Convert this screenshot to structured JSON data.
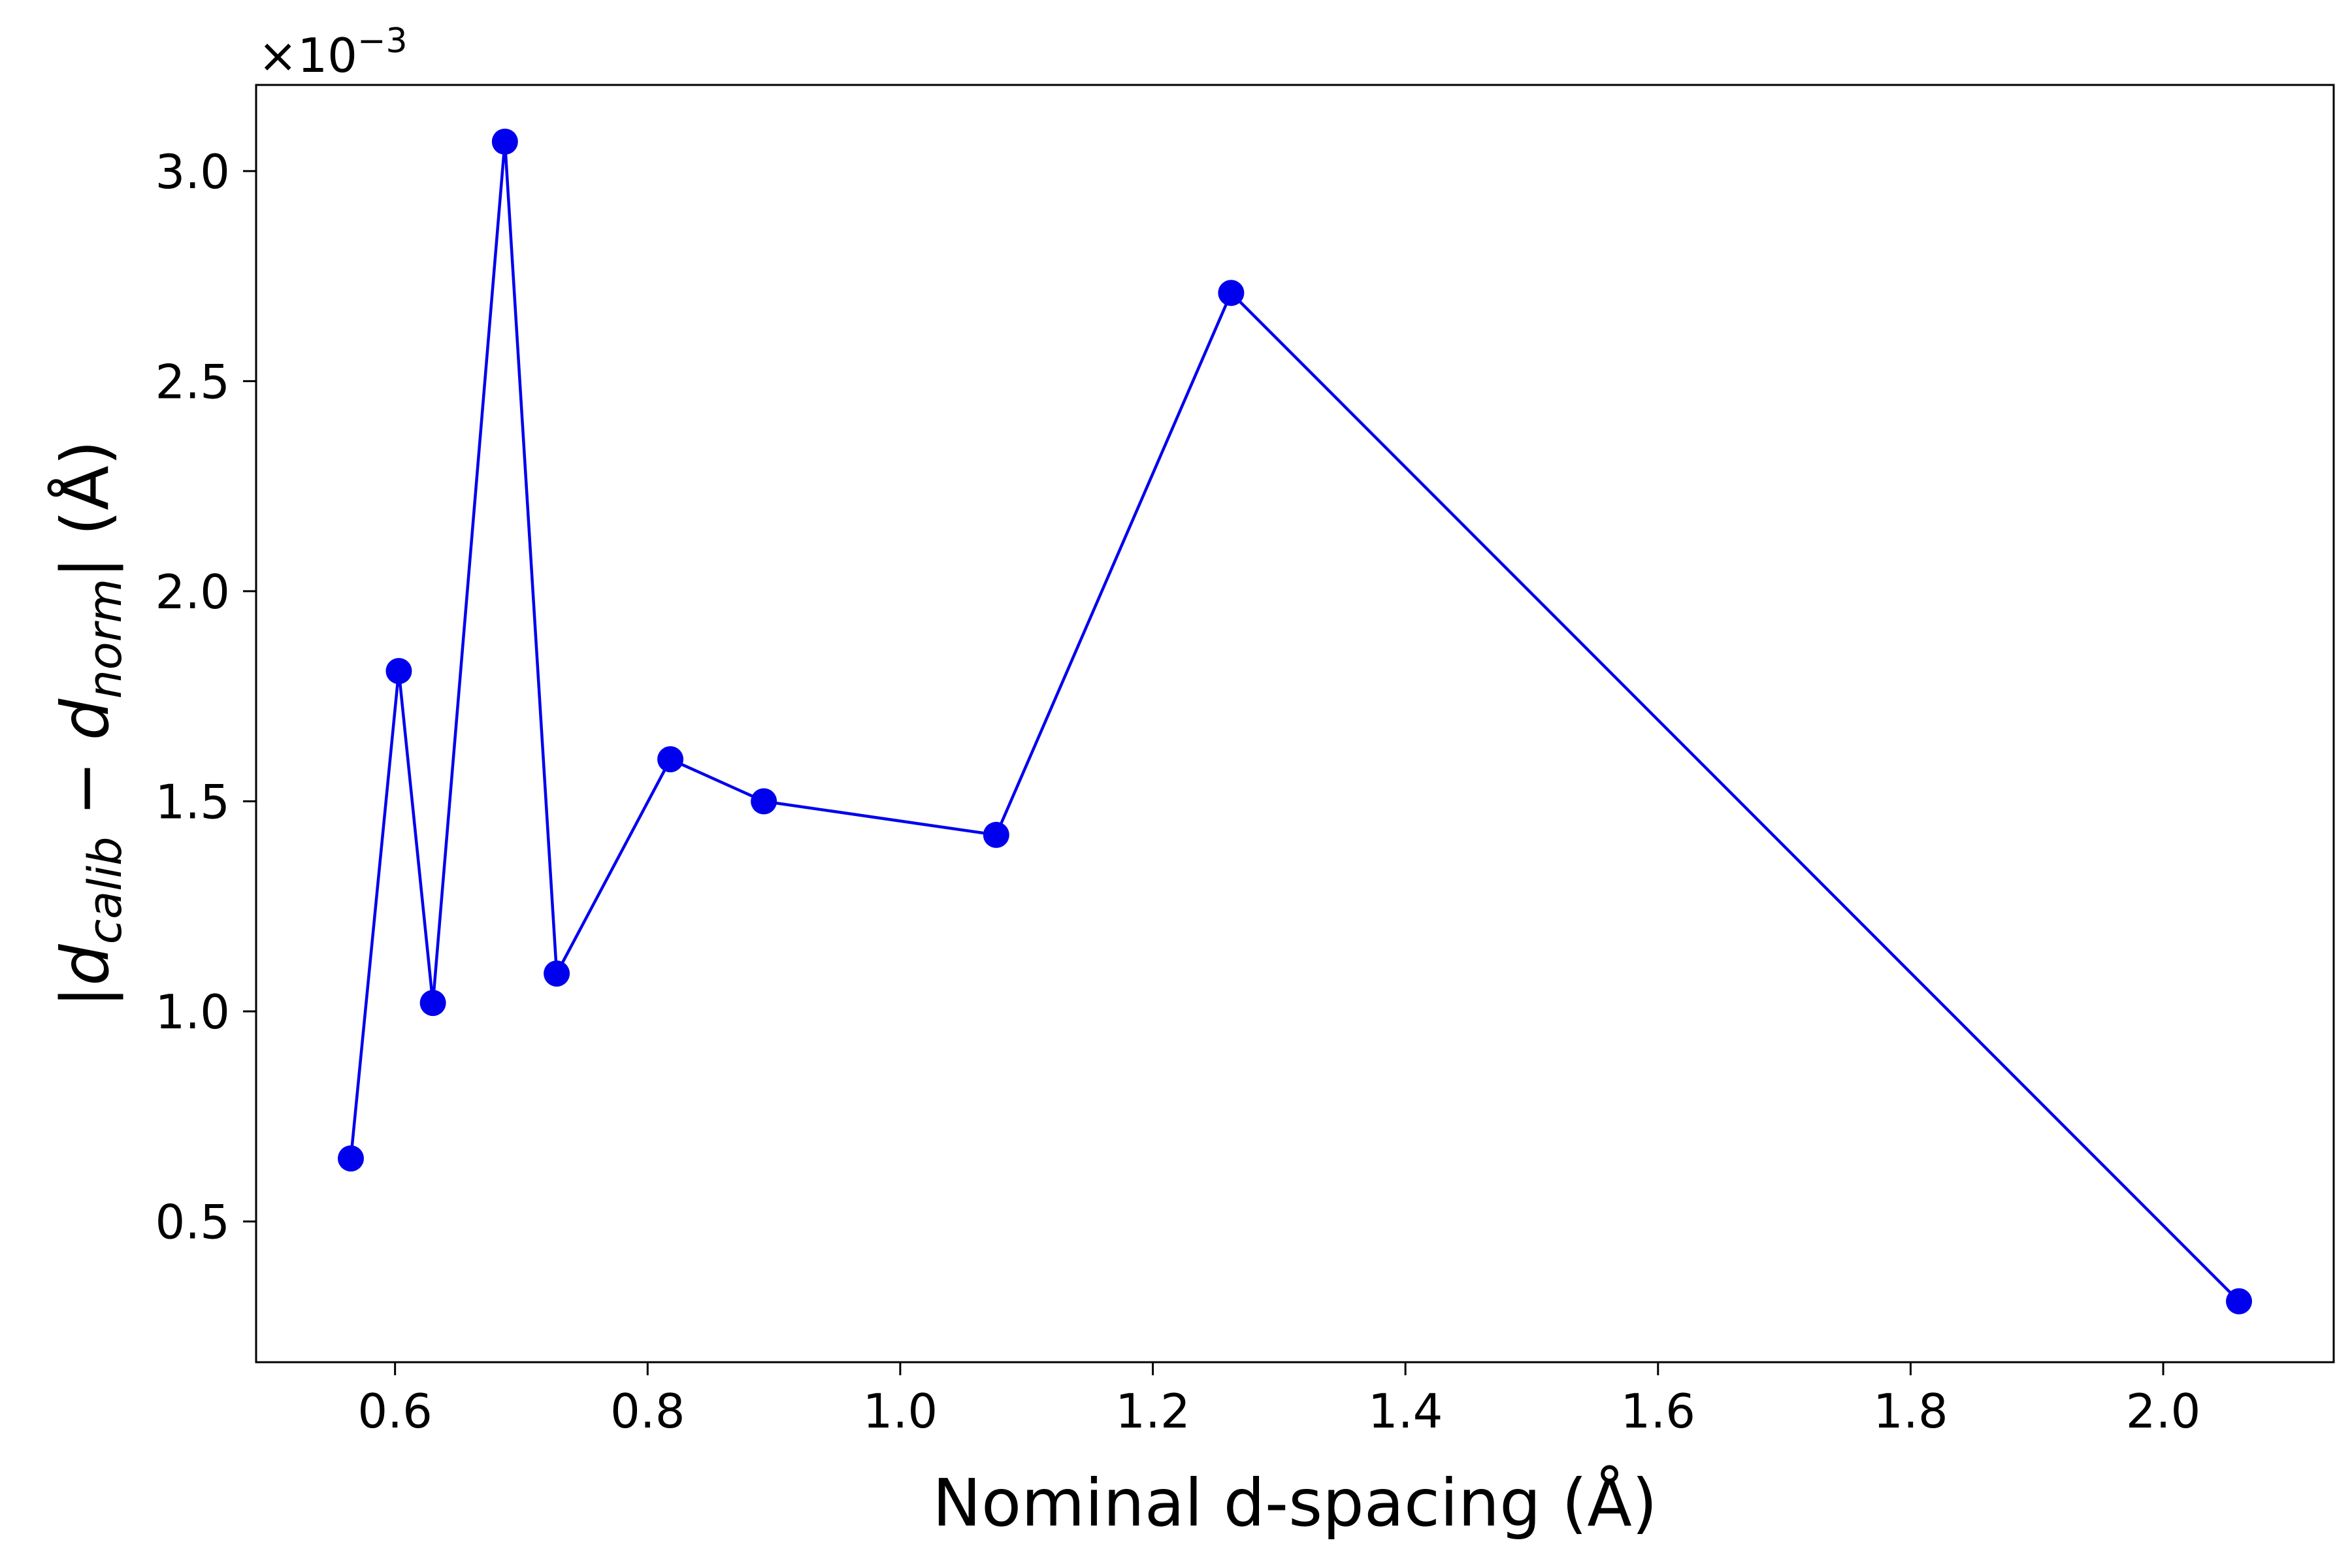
{
  "chart_data": {
    "type": "line",
    "xlabel": "Nominal d-spacing (Å)",
    "ylabel": {
      "open": "|",
      "d1": "d",
      "sub1": "calib",
      "minus": " − ",
      "d2": "d",
      "sub2": "norm",
      "close": "| (Å)"
    },
    "y_offset_label": {
      "base": "×10",
      "exponent": "−3"
    },
    "xlim": [
      0.49,
      2.135
    ],
    "ylim": [
      0.165,
      3.205
    ],
    "xticks": [
      {
        "value": 0.6,
        "label": "0.6"
      },
      {
        "value": 0.8,
        "label": "0.8"
      },
      {
        "value": 1.0,
        "label": "1.0"
      },
      {
        "value": 1.2,
        "label": "1.2"
      },
      {
        "value": 1.4,
        "label": "1.4"
      },
      {
        "value": 1.6,
        "label": "1.6"
      },
      {
        "value": 1.8,
        "label": "1.8"
      },
      {
        "value": 2.0,
        "label": "2.0"
      }
    ],
    "yticks": [
      {
        "value": 0.5,
        "label": "0.5"
      },
      {
        "value": 1.0,
        "label": "1.0"
      },
      {
        "value": 1.5,
        "label": "1.5"
      },
      {
        "value": 2.0,
        "label": "2.0"
      },
      {
        "value": 2.5,
        "label": "2.5"
      },
      {
        "value": 3.0,
        "label": "3.0"
      }
    ],
    "grid": false,
    "legend": false,
    "series": [
      {
        "color": "#0000ee",
        "marker": "circle",
        "x": [
          0.565,
          0.603,
          0.63,
          0.687,
          0.728,
          0.818,
          0.892,
          1.076,
          1.262,
          2.06
        ],
        "y": [
          0.65,
          1.81,
          1.02,
          3.07,
          1.09,
          1.6,
          1.5,
          1.42,
          2.71,
          0.31
        ]
      }
    ]
  }
}
